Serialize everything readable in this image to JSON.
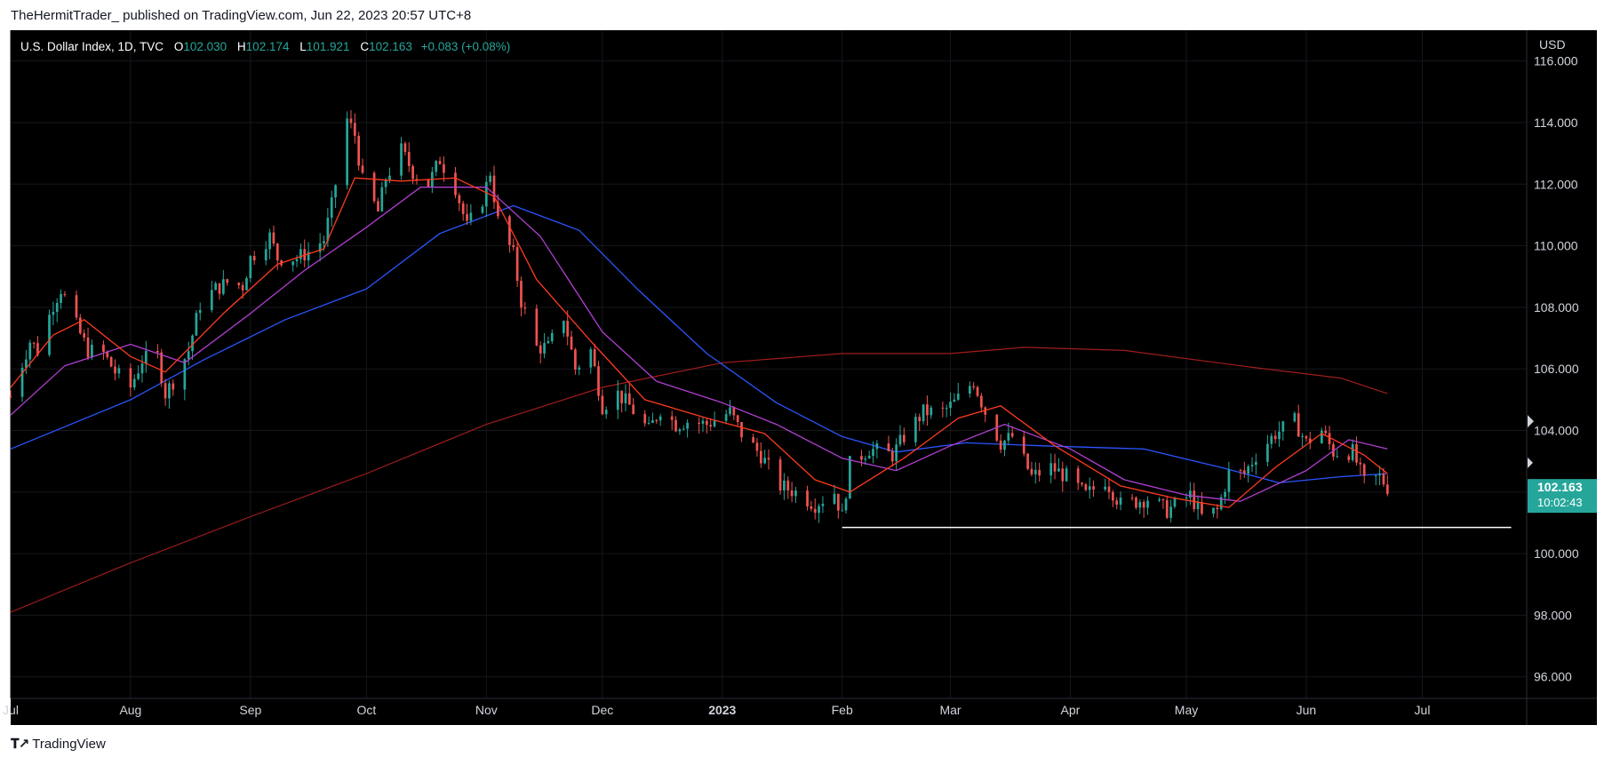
{
  "header": {
    "published_line": "TheHermitTrader_ published on TradingView.com, Jun 22, 2023 20:57 UTC+8"
  },
  "legend": {
    "symbol": "U.S. Dollar Index, 1D, TVC",
    "open_label": "O",
    "open": "102.030",
    "high_label": "H",
    "high": "102.174",
    "low_label": "L",
    "low": "101.921",
    "close_label": "C",
    "close": "102.163",
    "change": "+0.083 (+0.08%)"
  },
  "price_badge": {
    "price": "102.163",
    "countdown": "10:02:43"
  },
  "footer": {
    "brand": "TradingView"
  },
  "colors": {
    "background": "#000000",
    "up": "#26a69a",
    "down": "#ef5350",
    "ma_fast": "#ff3b1f",
    "ma_mid": "#b03fd1",
    "ma_slow": "#2a55ff",
    "ma_long": "#a11d1d",
    "support_line": "#ffffff"
  },
  "chart_data": {
    "type": "candlestick",
    "currency_label": "USD",
    "ylim": [
      95.3,
      117.0
    ],
    "y_ticks": [
      "116.000",
      "114.000",
      "112.000",
      "110.000",
      "108.000",
      "106.000",
      "104.000",
      "102.000",
      "100.000",
      "98.000",
      "96.000"
    ],
    "x_ticks": [
      {
        "label": "Jul",
        "date": "2022-07-01",
        "bold": false
      },
      {
        "label": "Aug",
        "date": "2022-08-01",
        "bold": false
      },
      {
        "label": "Sep",
        "date": "2022-09-01",
        "bold": false
      },
      {
        "label": "Oct",
        "date": "2022-10-01",
        "bold": false
      },
      {
        "label": "Nov",
        "date": "2022-11-01",
        "bold": false
      },
      {
        "label": "Dec",
        "date": "2022-12-01",
        "bold": false
      },
      {
        "label": "2023",
        "date": "2023-01-01",
        "bold": true
      },
      {
        "label": "Feb",
        "date": "2023-02-01",
        "bold": false
      },
      {
        "label": "Mar",
        "date": "2023-03-01",
        "bold": false
      },
      {
        "label": "Apr",
        "date": "2023-04-01",
        "bold": false
      },
      {
        "label": "May",
        "date": "2023-05-01",
        "bold": false
      },
      {
        "label": "Jun",
        "date": "2023-06-01",
        "bold": false
      },
      {
        "label": "Jul",
        "date": "2023-07-01",
        "bold": false
      }
    ],
    "x_range": [
      "2022-07-01",
      "2023-07-28"
    ],
    "closes": [
      [
        "2022-07-01",
        105.1
      ],
      [
        "2022-07-06",
        106.9
      ],
      [
        "2022-07-08",
        106.6
      ],
      [
        "2022-07-12",
        108.1
      ],
      [
        "2022-07-14",
        108.6
      ],
      [
        "2022-07-18",
        107.4
      ],
      [
        "2022-07-21",
        106.6
      ],
      [
        "2022-07-25",
        106.5
      ],
      [
        "2022-07-28",
        105.9
      ],
      [
        "2022-08-01",
        105.4
      ],
      [
        "2022-08-04",
        106.3
      ],
      [
        "2022-08-08",
        106.4
      ],
      [
        "2022-08-10",
        105.2
      ],
      [
        "2022-08-12",
        105.6
      ],
      [
        "2022-08-16",
        106.6
      ],
      [
        "2022-08-19",
        108.1
      ],
      [
        "2022-08-23",
        108.6
      ],
      [
        "2022-08-26",
        108.8
      ],
      [
        "2022-08-30",
        108.7
      ],
      [
        "2022-09-01",
        109.6
      ],
      [
        "2022-09-06",
        110.3
      ],
      [
        "2022-09-08",
        109.6
      ],
      [
        "2022-09-13",
        109.6
      ],
      [
        "2022-09-16",
        109.8
      ],
      [
        "2022-09-20",
        110.2
      ],
      [
        "2022-09-22",
        111.3
      ],
      [
        "2022-09-26",
        114.1
      ],
      [
        "2022-09-28",
        113.6
      ],
      [
        "2022-09-30",
        112.1
      ],
      [
        "2022-10-04",
        111.1
      ],
      [
        "2022-10-06",
        112.2
      ],
      [
        "2022-10-10",
        113.1
      ],
      [
        "2022-10-13",
        112.4
      ],
      [
        "2022-10-17",
        112.0
      ],
      [
        "2022-10-20",
        112.8
      ],
      [
        "2022-10-24",
        111.9
      ],
      [
        "2022-10-27",
        110.6
      ],
      [
        "2022-10-31",
        111.5
      ],
      [
        "2022-11-02",
        112.4
      ],
      [
        "2022-11-04",
        110.8
      ],
      [
        "2022-11-08",
        109.7
      ],
      [
        "2022-11-10",
        108.2
      ],
      [
        "2022-11-14",
        106.7
      ],
      [
        "2022-11-17",
        106.7
      ],
      [
        "2022-11-21",
        107.7
      ],
      [
        "2022-11-24",
        106.0
      ],
      [
        "2022-11-28",
        106.6
      ],
      [
        "2022-12-01",
        104.8
      ],
      [
        "2022-12-05",
        105.2
      ],
      [
        "2022-12-08",
        104.8
      ],
      [
        "2022-12-13",
        104.0
      ],
      [
        "2022-12-16",
        104.7
      ],
      [
        "2022-12-20",
        104.2
      ],
      [
        "2022-12-23",
        104.3
      ],
      [
        "2022-12-28",
        104.2
      ],
      [
        "2023-01-03",
        104.6
      ],
      [
        "2023-01-06",
        103.9
      ],
      [
        "2023-01-11",
        103.2
      ],
      [
        "2023-01-16",
        102.2
      ],
      [
        "2023-01-20",
        102.0
      ],
      [
        "2023-01-25",
        101.6
      ],
      [
        "2023-01-30",
        102.0
      ],
      [
        "2023-02-01",
        101.2
      ],
      [
        "2023-02-03",
        102.9
      ],
      [
        "2023-02-08",
        103.4
      ],
      [
        "2023-02-14",
        103.2
      ],
      [
        "2023-02-17",
        103.8
      ],
      [
        "2023-02-22",
        104.6
      ],
      [
        "2023-02-27",
        104.6
      ],
      [
        "2023-03-02",
        104.9
      ],
      [
        "2023-03-07",
        105.6
      ],
      [
        "2023-03-10",
        104.6
      ],
      [
        "2023-03-14",
        103.6
      ],
      [
        "2023-03-17",
        103.8
      ],
      [
        "2023-03-22",
        102.5
      ],
      [
        "2023-03-27",
        102.8
      ],
      [
        "2023-03-31",
        102.5
      ],
      [
        "2023-04-05",
        101.9
      ],
      [
        "2023-04-10",
        102.4
      ],
      [
        "2023-04-14",
        101.6
      ],
      [
        "2023-04-18",
        101.7
      ],
      [
        "2023-04-21",
        101.8
      ],
      [
        "2023-04-26",
        101.4
      ],
      [
        "2023-05-02",
        101.9
      ],
      [
        "2023-05-05",
        101.2
      ],
      [
        "2023-05-09",
        101.4
      ],
      [
        "2023-05-12",
        102.6
      ],
      [
        "2023-05-16",
        102.6
      ],
      [
        "2023-05-19",
        103.2
      ],
      [
        "2023-05-24",
        103.9
      ],
      [
        "2023-05-29",
        104.3
      ],
      [
        "2023-06-01",
        103.6
      ],
      [
        "2023-06-05",
        104.0
      ],
      [
        "2023-06-08",
        103.3
      ],
      [
        "2023-06-13",
        103.3
      ],
      [
        "2023-06-16",
        102.3
      ],
      [
        "2023-06-20",
        102.5
      ],
      [
        "2023-06-22",
        102.16
      ]
    ],
    "ma_fast_values": [
      [
        "2022-07-01",
        105.4
      ],
      [
        "2022-07-12",
        107.1
      ],
      [
        "2022-07-20",
        107.6
      ],
      [
        "2022-08-01",
        106.4
      ],
      [
        "2022-08-10",
        105.9
      ],
      [
        "2022-08-25",
        107.8
      ],
      [
        "2022-09-08",
        109.4
      ],
      [
        "2022-09-20",
        109.9
      ],
      [
        "2022-09-28",
        112.2
      ],
      [
        "2022-10-10",
        112.1
      ],
      [
        "2022-10-24",
        112.2
      ],
      [
        "2022-11-03",
        111.6
      ],
      [
        "2022-11-14",
        108.9
      ],
      [
        "2022-11-28",
        106.9
      ],
      [
        "2022-12-12",
        105.0
      ],
      [
        "2022-12-28",
        104.4
      ],
      [
        "2023-01-12",
        103.9
      ],
      [
        "2023-01-25",
        102.4
      ],
      [
        "2023-02-03",
        102.0
      ],
      [
        "2023-02-17",
        103.1
      ],
      [
        "2023-03-03",
        104.4
      ],
      [
        "2023-03-14",
        104.8
      ],
      [
        "2023-03-28",
        103.5
      ],
      [
        "2023-04-14",
        102.2
      ],
      [
        "2023-04-28",
        101.8
      ],
      [
        "2023-05-12",
        101.5
      ],
      [
        "2023-05-24",
        102.8
      ],
      [
        "2023-06-05",
        103.9
      ],
      [
        "2023-06-16",
        103.2
      ],
      [
        "2023-06-22",
        102.6
      ]
    ],
    "ma_mid_values": [
      [
        "2022-07-01",
        104.5
      ],
      [
        "2022-07-15",
        106.1
      ],
      [
        "2022-08-01",
        106.8
      ],
      [
        "2022-08-15",
        106.2
      ],
      [
        "2022-09-01",
        107.8
      ],
      [
        "2022-09-15",
        109.2
      ],
      [
        "2022-10-01",
        110.6
      ],
      [
        "2022-10-15",
        111.9
      ],
      [
        "2022-11-01",
        111.9
      ],
      [
        "2022-11-15",
        110.3
      ],
      [
        "2022-12-01",
        107.2
      ],
      [
        "2022-12-15",
        105.6
      ],
      [
        "2023-01-01",
        104.9
      ],
      [
        "2023-01-15",
        104.2
      ],
      [
        "2023-02-01",
        103.1
      ],
      [
        "2023-02-15",
        102.7
      ],
      [
        "2023-03-01",
        103.5
      ],
      [
        "2023-03-15",
        104.2
      ],
      [
        "2023-04-01",
        103.4
      ],
      [
        "2023-04-15",
        102.4
      ],
      [
        "2023-05-01",
        101.9
      ],
      [
        "2023-05-15",
        101.7
      ],
      [
        "2023-06-01",
        102.7
      ],
      [
        "2023-06-12",
        103.7
      ],
      [
        "2023-06-22",
        103.4
      ]
    ],
    "ma_slow_values": [
      [
        "2022-07-01",
        103.4
      ],
      [
        "2022-08-01",
        105.0
      ],
      [
        "2022-08-20",
        106.3
      ],
      [
        "2022-09-10",
        107.6
      ],
      [
        "2022-10-01",
        108.6
      ],
      [
        "2022-10-20",
        110.4
      ],
      [
        "2022-11-08",
        111.3
      ],
      [
        "2022-11-25",
        110.5
      ],
      [
        "2022-12-10",
        108.6
      ],
      [
        "2022-12-28",
        106.5
      ],
      [
        "2023-01-15",
        104.9
      ],
      [
        "2023-02-01",
        103.8
      ],
      [
        "2023-02-15",
        103.3
      ],
      [
        "2023-03-05",
        103.6
      ],
      [
        "2023-03-25",
        103.5
      ],
      [
        "2023-04-20",
        103.4
      ],
      [
        "2023-05-10",
        102.8
      ],
      [
        "2023-05-25",
        102.3
      ],
      [
        "2023-06-10",
        102.5
      ],
      [
        "2023-06-22",
        102.6
      ]
    ],
    "ma_long_values": [
      [
        "2022-07-01",
        98.1
      ],
      [
        "2022-08-01",
        99.7
      ],
      [
        "2022-09-01",
        101.2
      ],
      [
        "2022-10-01",
        102.6
      ],
      [
        "2022-11-01",
        104.2
      ],
      [
        "2022-12-01",
        105.4
      ],
      [
        "2023-01-01",
        106.2
      ],
      [
        "2023-02-01",
        106.5
      ],
      [
        "2023-03-01",
        106.5
      ],
      [
        "2023-03-20",
        106.7
      ],
      [
        "2023-04-15",
        106.6
      ],
      [
        "2023-05-15",
        106.1
      ],
      [
        "2023-06-10",
        105.7
      ],
      [
        "2023-06-22",
        105.2
      ]
    ],
    "support_line": {
      "price": 100.85,
      "from": "2023-02-01",
      "to": "2023-07-24"
    }
  }
}
